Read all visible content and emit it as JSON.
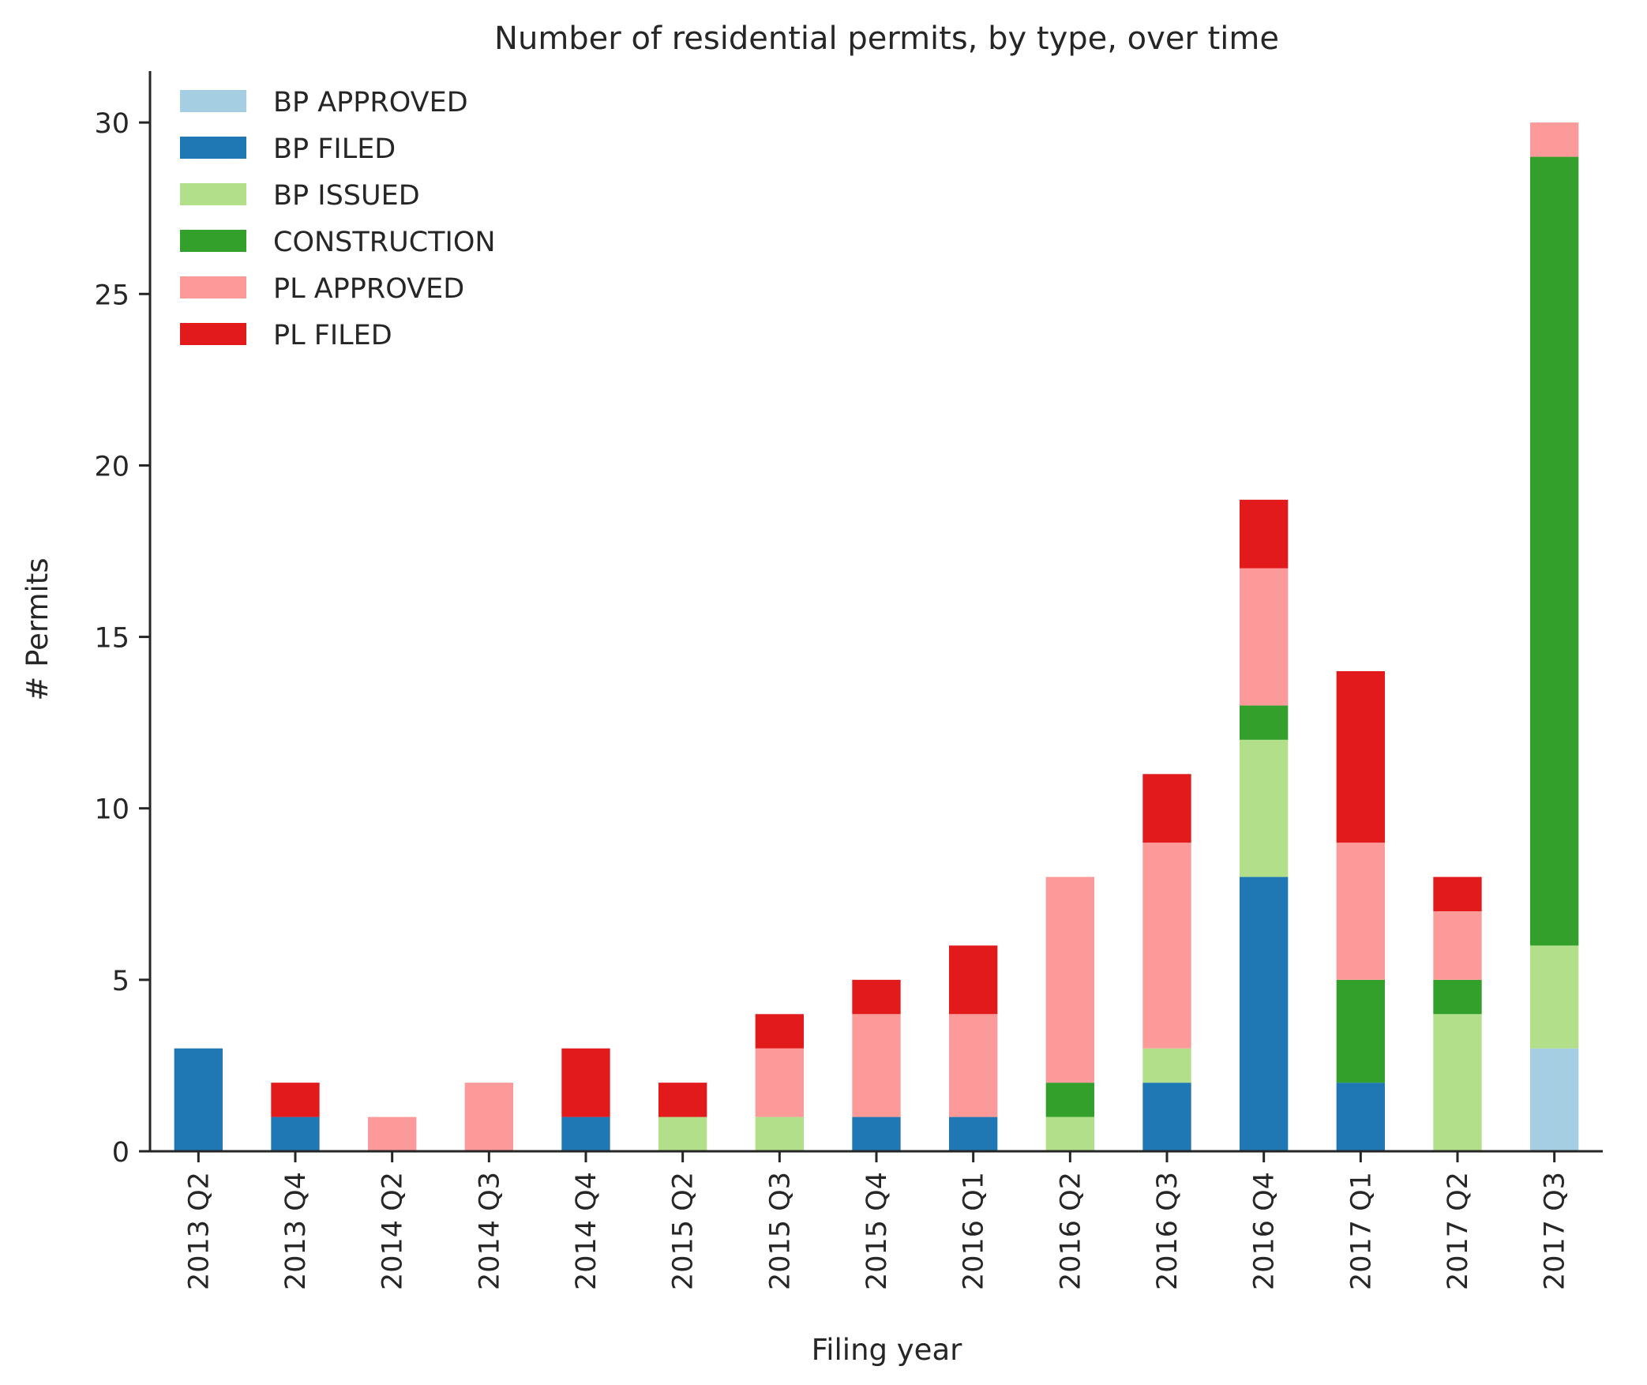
{
  "chart_data": {
    "type": "bar",
    "stacked": true,
    "title": "Number of residential permits, by type, over time",
    "xlabel": "Filing year",
    "ylabel": "# Permits",
    "ylim": [
      0,
      31.5
    ],
    "yticks": [
      0,
      5,
      10,
      15,
      20,
      25,
      30
    ],
    "grid": false,
    "legend_position": "top-left",
    "categories": [
      "2013 Q2",
      "2013 Q4",
      "2014 Q2",
      "2014 Q3",
      "2014 Q4",
      "2015 Q2",
      "2015 Q3",
      "2015 Q4",
      "2016 Q1",
      "2016 Q2",
      "2016 Q3",
      "2016 Q4",
      "2017 Q1",
      "2017 Q2",
      "2017 Q3"
    ],
    "series": [
      {
        "name": "BP APPROVED",
        "color": "#a6cee3",
        "values": [
          0,
          0,
          0,
          0,
          0,
          0,
          0,
          0,
          0,
          0,
          0,
          0,
          0,
          0,
          3
        ]
      },
      {
        "name": "BP FILED",
        "color": "#1f78b4",
        "values": [
          3,
          1,
          0,
          0,
          1,
          0,
          0,
          1,
          1,
          0,
          2,
          8,
          2,
          0,
          0
        ]
      },
      {
        "name": "BP ISSUED",
        "color": "#b2df8a",
        "values": [
          0,
          0,
          0,
          0,
          0,
          1,
          1,
          0,
          0,
          1,
          1,
          4,
          0,
          4,
          3
        ]
      },
      {
        "name": "CONSTRUCTION",
        "color": "#33a02c",
        "values": [
          0,
          0,
          0,
          0,
          0,
          0,
          0,
          0,
          0,
          1,
          0,
          1,
          3,
          1,
          23
        ]
      },
      {
        "name": "PL APPROVED",
        "color": "#fb9a99",
        "values": [
          0,
          0,
          1,
          2,
          0,
          0,
          2,
          3,
          3,
          6,
          6,
          4,
          4,
          2,
          1
        ]
      },
      {
        "name": "PL FILED",
        "color": "#e31a1c",
        "values": [
          0,
          1,
          0,
          0,
          2,
          1,
          1,
          1,
          2,
          0,
          2,
          2,
          5,
          1,
          0
        ]
      }
    ]
  }
}
